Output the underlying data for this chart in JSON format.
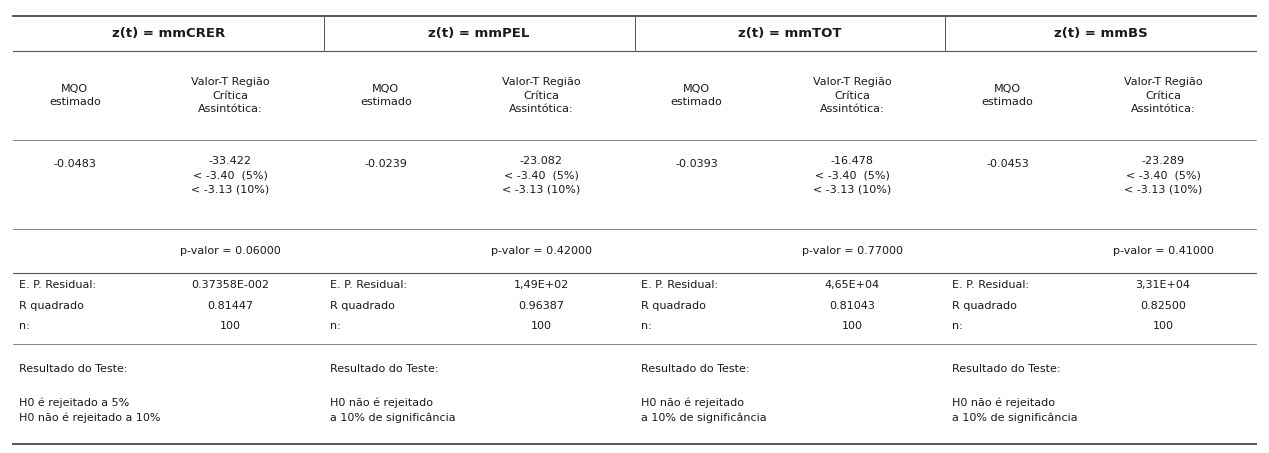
{
  "columns": [
    "z(t) = mmCRER",
    "z(t) = mmPEL",
    "z(t) = mmTOT",
    "z(t) = mmBS"
  ],
  "mqo": [
    "-0.0483",
    "-0.0239",
    "-0.0393",
    "-0.0453"
  ],
  "t_stat": [
    "-33.422",
    "-23.082",
    "-16.478",
    "-23.289"
  ],
  "critical_5": "< -3.40  (5%)",
  "critical_10": "< -3.13 (10%)",
  "pvalor": [
    "p-valor = 0.06000",
    "p-valor = 0.42000",
    "p-valor = 0.77000",
    "p-valor = 0.41000"
  ],
  "ep_residual": [
    "0.37358E-002",
    "1,49E+02",
    "4,65E+04",
    "3,31E+04"
  ],
  "r_quadrado": [
    "0.81447",
    "0.96387",
    "0.81043",
    "0.82500"
  ],
  "n": [
    "100",
    "100",
    "100",
    "100"
  ],
  "resultado_label": "Resultado do Teste:",
  "resultado": [
    "H0 é rejeitado a 5%\nH0 não é rejeitado a 10%",
    "H0 não é rejeitado\na 10% de significância",
    "H0 não é rejeitado\na 10% de significância",
    "H0 não é rejeitado\na 10% de significância"
  ],
  "bg_color": "#ffffff",
  "text_color": "#1a1a1a",
  "line_color": "#555555",
  "font_size": 8.0,
  "header_font_size": 9.5,
  "col_bounds": [
    0.0,
    0.25,
    0.5,
    0.75,
    1.0
  ],
  "sub_split": 0.4
}
